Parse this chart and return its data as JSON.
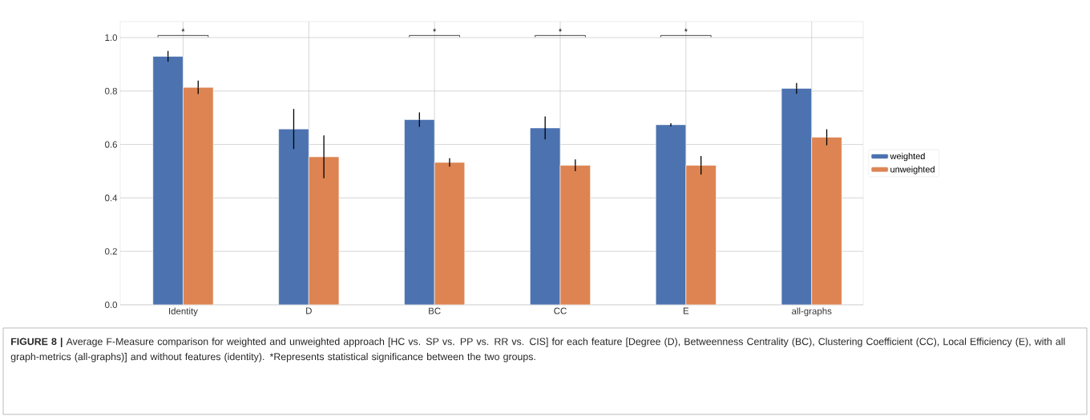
{
  "chart_data": {
    "type": "bar",
    "categories": [
      "Identity",
      "D",
      "BC",
      "CC",
      "E",
      "all-graphs"
    ],
    "series": [
      {
        "name": "weighted",
        "color": "#4c72b0",
        "values": [
          0.93,
          0.658,
          0.693,
          0.662,
          0.674,
          0.81
        ],
        "errors": [
          0.02,
          0.075,
          0.027,
          0.043,
          0.006,
          0.02
        ]
      },
      {
        "name": "unweighted",
        "color": "#dd8452",
        "values": [
          0.814,
          0.554,
          0.533,
          0.522,
          0.522,
          0.627
        ],
        "errors": [
          0.025,
          0.08,
          0.016,
          0.022,
          0.035,
          0.03
        ]
      }
    ],
    "ylim": [
      0,
      1.06
    ],
    "yticks": [
      {
        "value": 0,
        "label": "0.0"
      },
      {
        "value": 0.2,
        "label": "0.2"
      },
      {
        "value": 0.4,
        "label": "0.4"
      },
      {
        "value": 0.6,
        "label": "0.6"
      },
      {
        "value": 0.8,
        "label": "0.8"
      },
      {
        "value": 1.0,
        "label": "1.0"
      }
    ],
    "grid": true,
    "legend": "right",
    "annotations": [
      "*",
      "*",
      "*",
      "*",
      "**FIGURE 8 |** Average F-Measure comparison for weighted and unweighted approach [HC vs. SP vs. PP vs. RR vs. CIS] for each feature [Degree (D), Betweenness Centrality (BC), Clustering Coefficient (CC), Local Efficiency (E), with all graph-metrics (all-graphs)] and without features (identity). *Represents statistical significance between the two groups."
    ]
  }
}
